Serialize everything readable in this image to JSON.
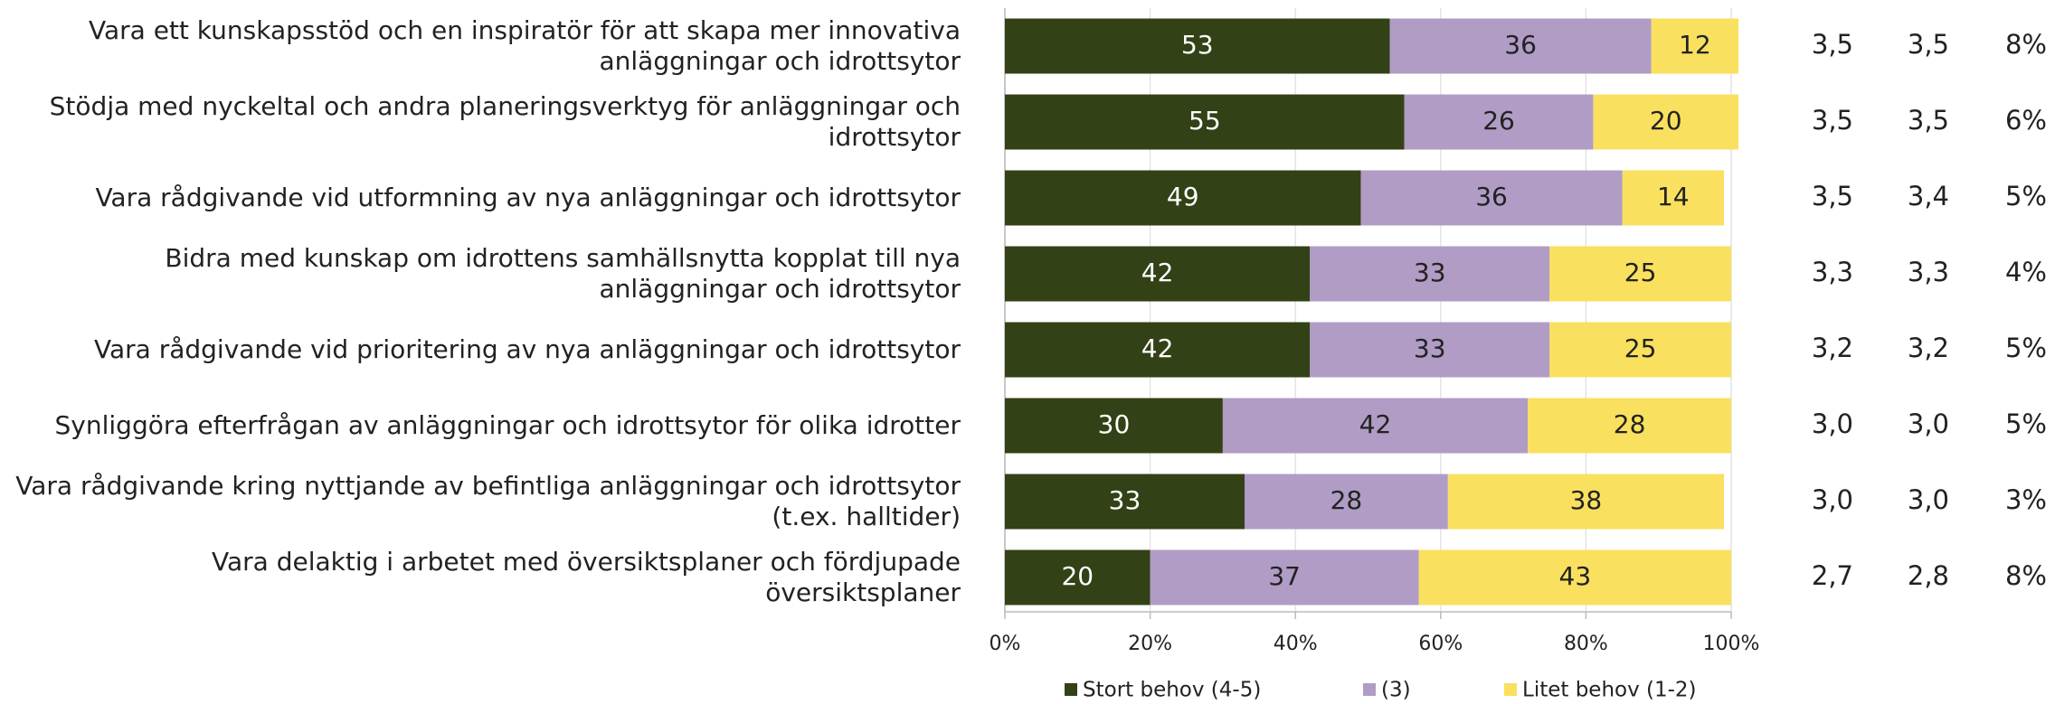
{
  "chart_data": {
    "type": "stacked_barh",
    "categories": [
      "Vara ett kunskapsstöd och en inspiratör för att skapa mer innovativa\nanläggningar och idrottsytor",
      "Stödja med nyckeltal och andra planeringsverktyg för anläggningar och\nidrottsytor",
      "Vara rådgivande vid utformning av nya anläggningar och idrottsytor",
      "Bidra med kunskap om idrottens samhällsnytta kopplat till nya\nanläggningar och idrottsytor",
      "Vara rådgivande vid prioritering av nya anläggningar och idrottsytor",
      "Synliggöra efterfrågan av anläggningar och idrottsytor för olika idrotter",
      "Vara rådgivande kring nyttjande av befintliga anläggningar och idrottsytor\n(t.ex. halltider)",
      "Vara delaktig i arbetet med översiktsplaner och fördjupade översiktsplaner"
    ],
    "series": [
      {
        "name": "Stort behov (4-5)",
        "color": "#334116",
        "label_color": "#ffffff",
        "values": [
          53,
          55,
          49,
          42,
          42,
          30,
          33,
          20
        ]
      },
      {
        "name": "(3)",
        "color": "#b09cc5",
        "label_color": "#222222",
        "values": [
          36,
          26,
          36,
          33,
          33,
          42,
          28,
          37
        ]
      },
      {
        "name": "Litet behov (1-2)",
        "color": "#f9e05e",
        "label_color": "#222222",
        "values": [
          12,
          20,
          14,
          25,
          25,
          28,
          38,
          43
        ]
      }
    ],
    "xlim": [
      0,
      100
    ],
    "xticks": [
      {
        "value": 0,
        "label": "0%"
      },
      {
        "value": 20,
        "label": "20%"
      },
      {
        "value": 40,
        "label": "40%"
      },
      {
        "value": 60,
        "label": "60%"
      },
      {
        "value": 80,
        "label": "80%"
      },
      {
        "value": 100,
        "label": "100%"
      }
    ],
    "grid": true,
    "legend": "bottom",
    "right_columns": [
      [
        "3,5",
        "3,5",
        "3,5",
        "3,3",
        "3,2",
        "3,0",
        "3,0",
        "2,7"
      ],
      [
        "3,5",
        "3,5",
        "3,4",
        "3,3",
        "3,2",
        "3,0",
        "3,0",
        "2,8"
      ],
      [
        "8%",
        "6%",
        "5%",
        "4%",
        "5%",
        "5%",
        "3%",
        "8%"
      ]
    ]
  }
}
